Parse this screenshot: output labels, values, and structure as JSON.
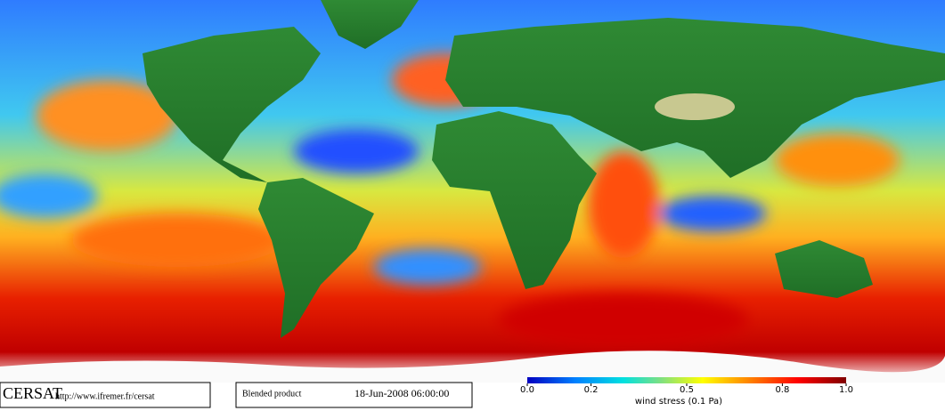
{
  "header": {
    "logo": "CERSAT",
    "url": "http://www.ifremer.fr/cersat",
    "product": "Blended product",
    "date": "18-Jun-2008 06:00:00"
  },
  "colorbar": {
    "label": "wind stress (0.1 Pa)",
    "lim": [
      0,
      1
    ],
    "ticks": [
      {
        "value": 0,
        "label": "0.0"
      },
      0.2,
      0.5,
      0.8,
      {
        "value": 1,
        "label": "1.0"
      }
    ]
  }
}
